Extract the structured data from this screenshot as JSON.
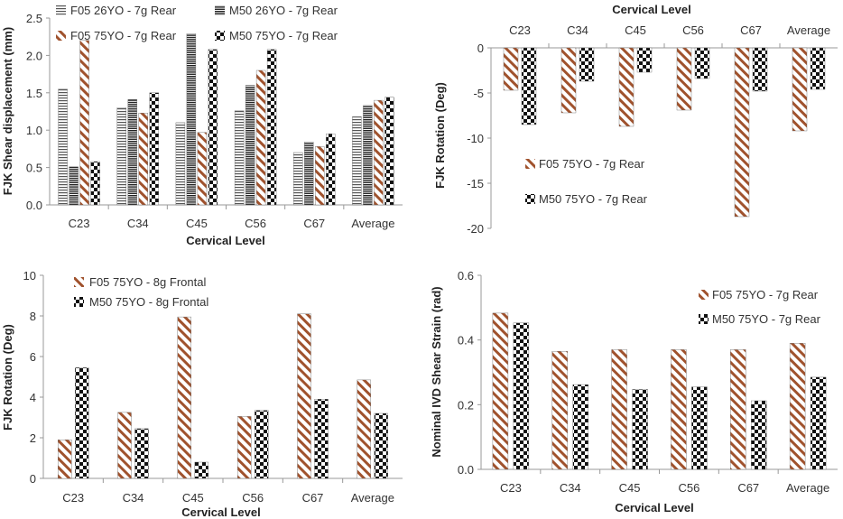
{
  "colors": {
    "stripe": "#a0522d",
    "dark": "#222222",
    "axis": "#999999",
    "grid": "#bbbbbb"
  },
  "chart_data": [
    {
      "type": "bar",
      "xlabel": "Cervical Level",
      "ylabel": "FJK Shear displacement (mm)",
      "categories": [
        "C23",
        "C34",
        "C45",
        "C56",
        "C67",
        "Average"
      ],
      "ylim": [
        0,
        2.5
      ],
      "yticks": [
        "0.0",
        "0.5",
        "1.0",
        "1.5",
        "2.0",
        "2.5"
      ],
      "legend_position": "top",
      "series": [
        {
          "name": "F05 26YO - 7g Rear",
          "pattern": "hlines",
          "values": [
            1.55,
            1.3,
            1.1,
            1.26,
            0.7,
            1.18
          ]
        },
        {
          "name": "M50 26YO - 7g Rear",
          "pattern": "hlines-dense",
          "values": [
            0.51,
            1.41,
            2.29,
            1.6,
            0.84,
            1.33
          ]
        },
        {
          "name": "F05 75YO - 7g Rear",
          "pattern": "diag",
          "values": [
            2.2,
            1.23,
            0.97,
            1.8,
            0.78,
            1.4
          ]
        },
        {
          "name": "M50 75YO - 7g Rear",
          "pattern": "check",
          "values": [
            0.58,
            1.5,
            2.08,
            2.08,
            0.95,
            1.44
          ]
        }
      ]
    },
    {
      "type": "bar",
      "xlabel": "Cervical Level",
      "ylabel": "FJK Rotation (Deg)",
      "categories": [
        "C23",
        "C34",
        "C45",
        "C56",
        "C67",
        "Average"
      ],
      "ylim": [
        -20,
        0
      ],
      "yticks": [
        "0",
        "-5",
        "-10",
        "-15",
        "-20"
      ],
      "legend_position": "middle-left",
      "series": [
        {
          "name": "F05 75YO - 7g Rear",
          "pattern": "diag",
          "values": [
            -4.7,
            -7.2,
            -8.7,
            -6.9,
            -18.7,
            -9.2
          ]
        },
        {
          "name": "M50 75YO - 7g Rear",
          "pattern": "check",
          "values": [
            -8.5,
            -3.7,
            -2.7,
            -3.4,
            -4.8,
            -4.6
          ]
        }
      ]
    },
    {
      "type": "bar",
      "xlabel": "Cervical Level",
      "ylabel": "FJK Rotation (Deg)",
      "categories": [
        "C23",
        "C34",
        "C45",
        "C56",
        "C67",
        "Average"
      ],
      "ylim": [
        0,
        10
      ],
      "yticks": [
        "0",
        "2",
        "4",
        "6",
        "8",
        "10"
      ],
      "legend_position": "top-left",
      "series": [
        {
          "name": "F05 75YO - 8g Frontal",
          "pattern": "diag",
          "values": [
            1.9,
            3.25,
            7.95,
            3.05,
            8.1,
            4.85
          ]
        },
        {
          "name": "M50 75YO - 8g Frontal",
          "pattern": "check",
          "values": [
            5.45,
            2.45,
            0.8,
            3.35,
            3.9,
            3.2
          ]
        }
      ]
    },
    {
      "type": "bar",
      "xlabel": "Cervical Level",
      "ylabel": "Nominal IVD Shear Strain (rad)",
      "categories": [
        "C23",
        "C34",
        "C45",
        "C56",
        "C67",
        "Average"
      ],
      "ylim": [
        0,
        0.6
      ],
      "yticks": [
        "0.0",
        "0.2",
        "0.4",
        "0.6"
      ],
      "legend_position": "top-right",
      "series": [
        {
          "name": "F05 75YO - 7g Rear",
          "pattern": "diag",
          "values": [
            0.483,
            0.365,
            0.37,
            0.37,
            0.37,
            0.39
          ]
        },
        {
          "name": "M50 75YO - 7g Rear",
          "pattern": "check",
          "values": [
            0.453,
            0.262,
            0.247,
            0.255,
            0.212,
            0.285
          ]
        }
      ]
    }
  ]
}
